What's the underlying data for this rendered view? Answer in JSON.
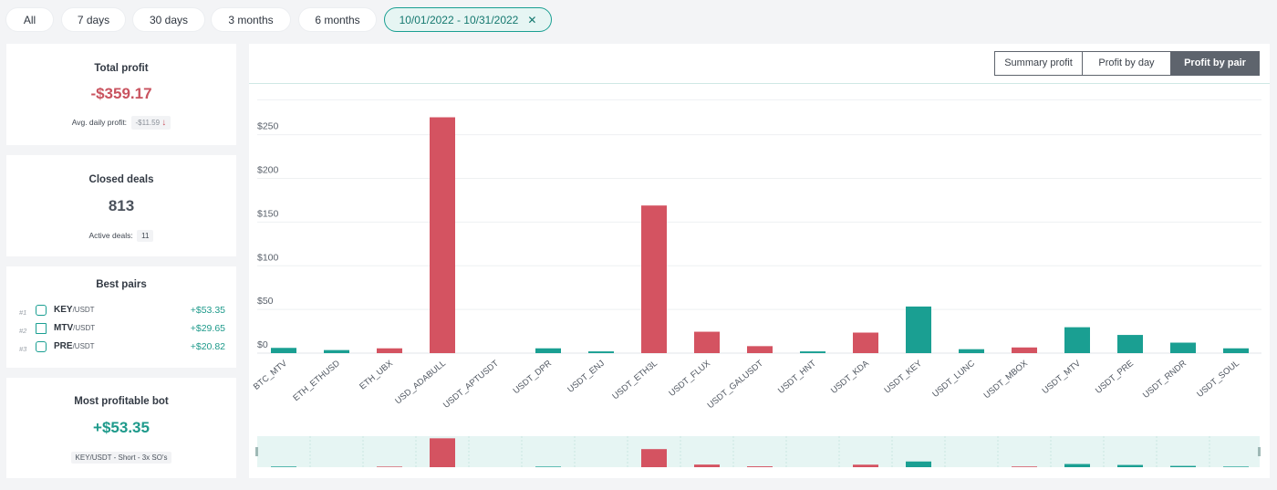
{
  "filters": [
    {
      "label": "All"
    },
    {
      "label": "7 days"
    },
    {
      "label": "30 days"
    },
    {
      "label": "3 months"
    },
    {
      "label": "6 months"
    },
    {
      "label": "10/01/2022 - 10/31/2022",
      "active": true,
      "close_icon": "close-icon"
    }
  ],
  "total_profit": {
    "title": "Total profit",
    "value": "-$359.17",
    "avg_label": "Avg. daily profit:",
    "avg_value": "-$11.59",
    "trend_icon": "arrow-down-icon"
  },
  "closed_deals": {
    "title": "Closed deals",
    "value": "813",
    "active_label": "Active deals:",
    "active_value": "11"
  },
  "best_pairs": {
    "title": "Best pairs",
    "items": [
      {
        "rank": "#1",
        "base": "KEY",
        "quote": "/USDT",
        "value": "+$53.35",
        "icon": "key-coin-icon"
      },
      {
        "rank": "#2",
        "base": "MTV",
        "quote": "/USDT",
        "value": "+$29.65",
        "icon": "mtv-coin-icon"
      },
      {
        "rank": "#3",
        "base": "PRE",
        "quote": "/USDT",
        "value": "+$20.82",
        "icon": "pre-coin-icon"
      }
    ]
  },
  "most_profitable_bot": {
    "title": "Most profitable bot",
    "value": "+$53.35",
    "bot_label": "KEY/USDT - Short - 3x SO's"
  },
  "chart_tabs": [
    {
      "label": "Summary profit"
    },
    {
      "label": "Profit by day"
    },
    {
      "label": "Profit by pair",
      "active": true
    }
  ],
  "colors": {
    "loss": "#d45361",
    "profit": "#1a9f92",
    "brush_bg": "#e6f5f3"
  },
  "chart_data": {
    "type": "bar",
    "categories": [
      "BTC_MTV",
      "ETH_ETHUSD",
      "ETH_UBX",
      "USD_ADABULL",
      "USDT_APTUSDT",
      "USDT_DPR",
      "USDT_ENJ",
      "USDT_ETH3L",
      "USDT_FLUX",
      "USDT_GALUSDT",
      "USDT_HNT",
      "USDT_KDA",
      "USDT_KEY",
      "USDT_LUNC",
      "USDT_MBOX",
      "USDT_MTV",
      "USDT_PRE",
      "USDT_RNDR",
      "USDT_SOUL"
    ],
    "values": [
      6,
      3.5,
      5.5,
      270,
      0.2,
      5.5,
      2,
      169,
      24.5,
      8,
      2,
      23.5,
      53.35,
      4.5,
      6.5,
      29.65,
      20.82,
      12,
      5.5
    ],
    "sign": [
      "profit",
      "profit",
      "loss",
      "loss",
      "profit",
      "profit",
      "profit",
      "loss",
      "loss",
      "loss",
      "profit",
      "loss",
      "profit",
      "profit",
      "loss",
      "profit",
      "profit",
      "profit",
      "profit"
    ],
    "yticks": [
      "$0",
      "$50",
      "$100",
      "$150",
      "$200",
      "$250"
    ],
    "ylim": [
      0,
      290
    ],
    "grid": true
  }
}
